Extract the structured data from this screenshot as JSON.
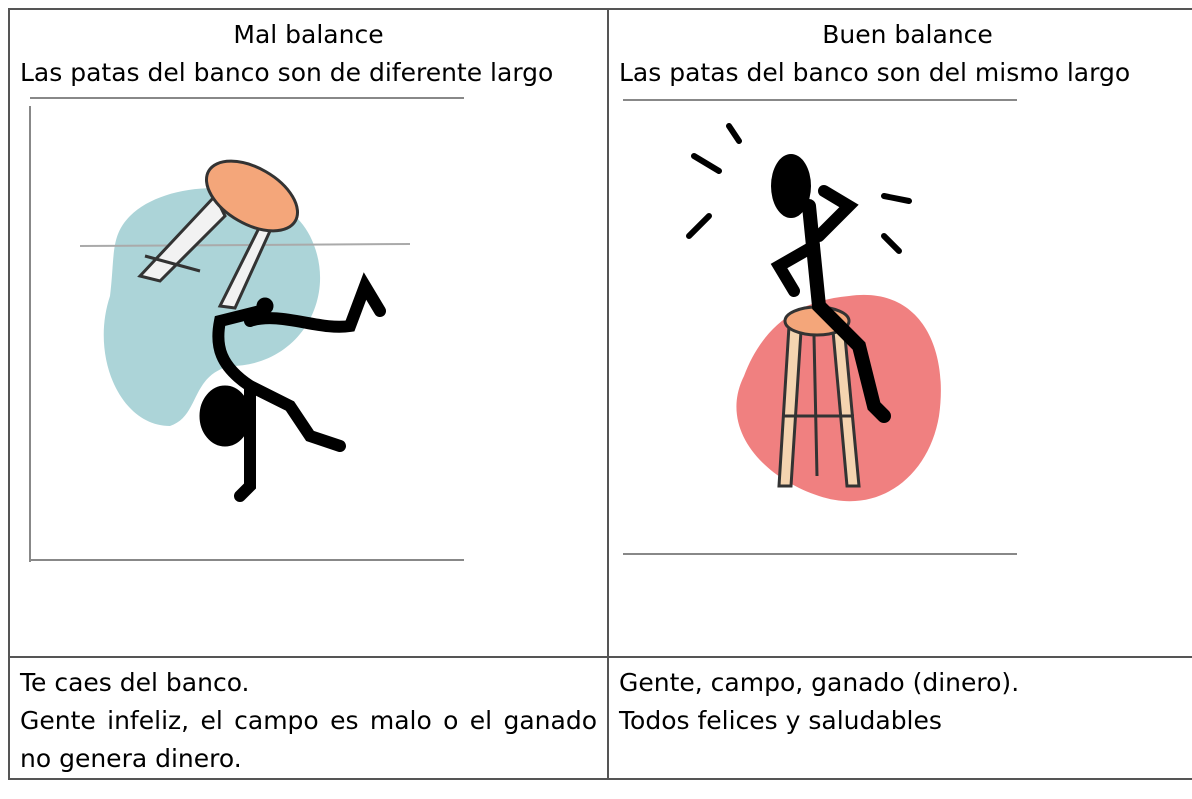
{
  "table": {
    "rows": [
      [
        {
          "heading": "Mal balance",
          "text": "Las patas del banco son de diferente largo"
        },
        {
          "heading": "Buen balance",
          "text": "Las patas del banco son del mismo largo"
        }
      ],
      [
        {
          "lines": [
            "Te caes del banco.",
            "Gente infeliz, el campo es malo o el ganado no genera dinero."
          ]
        },
        {
          "lines": [
            "Gente, campo, ganado (dinero).",
            "Todos felices y saludables"
          ]
        }
      ]
    ]
  }
}
